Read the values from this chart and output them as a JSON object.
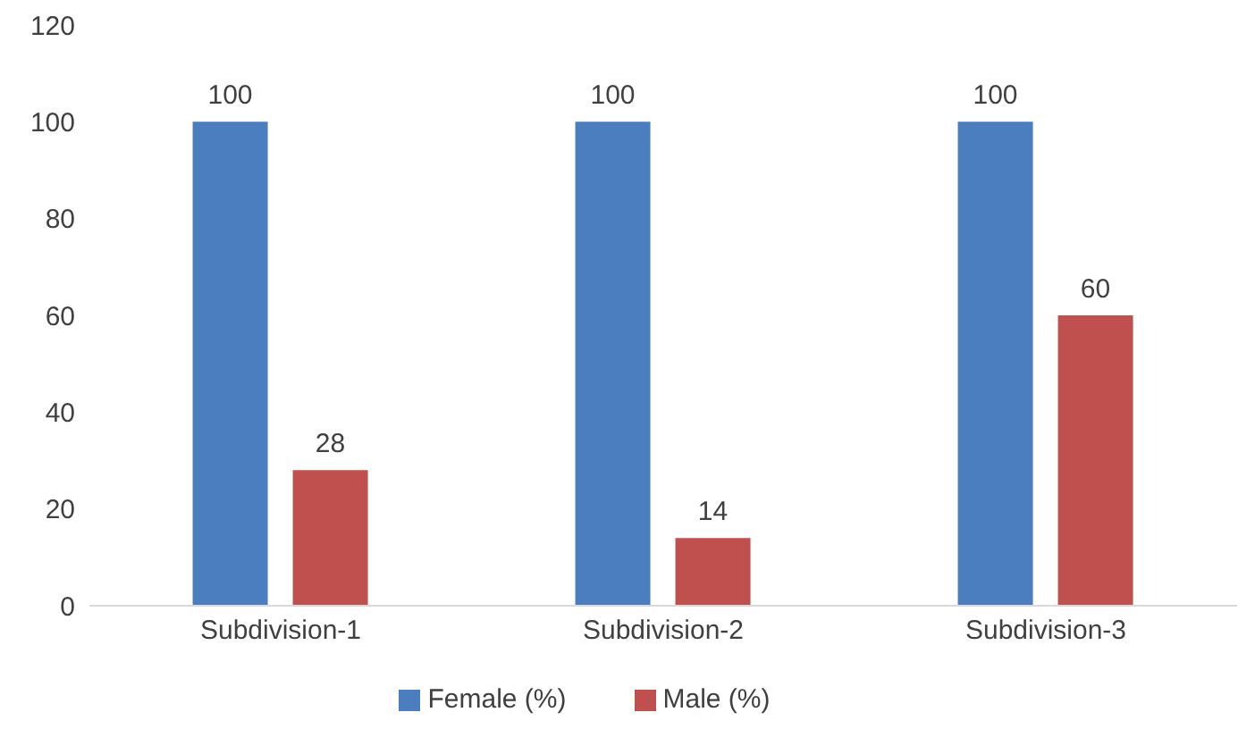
{
  "chart_data": {
    "type": "bar",
    "categories": [
      "Subdivision-1",
      "Subdivision-2",
      "Subdivision-3"
    ],
    "series": [
      {
        "name": "Female (%)",
        "color": "#4a7ebf",
        "values": [
          100,
          100,
          100
        ]
      },
      {
        "name": "Male (%)",
        "color": "#c0504d",
        "values": [
          28,
          14,
          60
        ]
      }
    ],
    "ylim": [
      0,
      120
    ],
    "yticks": [
      0,
      20,
      40,
      60,
      80,
      100,
      120
    ],
    "grid": false,
    "legend": "bottom",
    "data_labels": true
  }
}
